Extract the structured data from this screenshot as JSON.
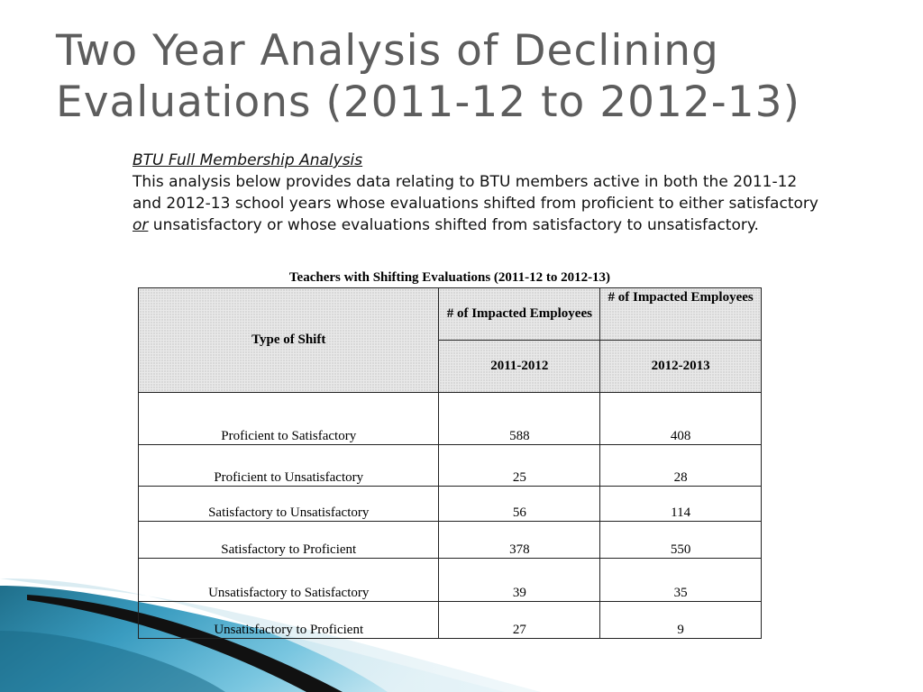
{
  "title": "Two Year Analysis of Declining Evaluations (2011-12 to 2012-13)",
  "intro": {
    "heading": "BTU Full Membership Analysis",
    "text_before": "This analysis below provides data relating to BTU members active in both the 2011-12 and 2012-13 school years whose evaluations shifted from proficient to either satisfactory ",
    "emphasis": "or",
    "text_after": " unsatisfactory or whose evaluations shifted from satisfactory to unsatisfactory."
  },
  "table": {
    "caption": "Teachers with Shifting Evaluations (2011-12 to 2012-13)",
    "col_type_header": "Type of Shift",
    "col_2011_header": "# of Impacted Employees",
    "col_2012_header": "# of Impacted Employees",
    "year_2011": "2011-2012",
    "year_2012": "2012-2013",
    "rows": [
      {
        "type": "Proficient to Satisfactory",
        "y2011": "588",
        "y2012": "408"
      },
      {
        "type": "Proficient to Unsatisfactory",
        "y2011": "25",
        "y2012": "28"
      },
      {
        "type": "Satisfactory to Unsatisfactory",
        "y2011": "56",
        "y2012": "114"
      },
      {
        "type": "Satisfactory to Proficient",
        "y2011": "378",
        "y2012": "550"
      },
      {
        "type": "Unsatisfactory to Satisfactory",
        "y2011": "39",
        "y2012": "35"
      },
      {
        "type": "Unsatisfactory to Proficient",
        "y2011": "27",
        "y2012": "9"
      }
    ]
  },
  "colors": {
    "title": "#5d5d5d",
    "wave_dark": "#1f6f8b",
    "wave_light": "#5ab7d6",
    "wave_stripe": "#111111"
  }
}
